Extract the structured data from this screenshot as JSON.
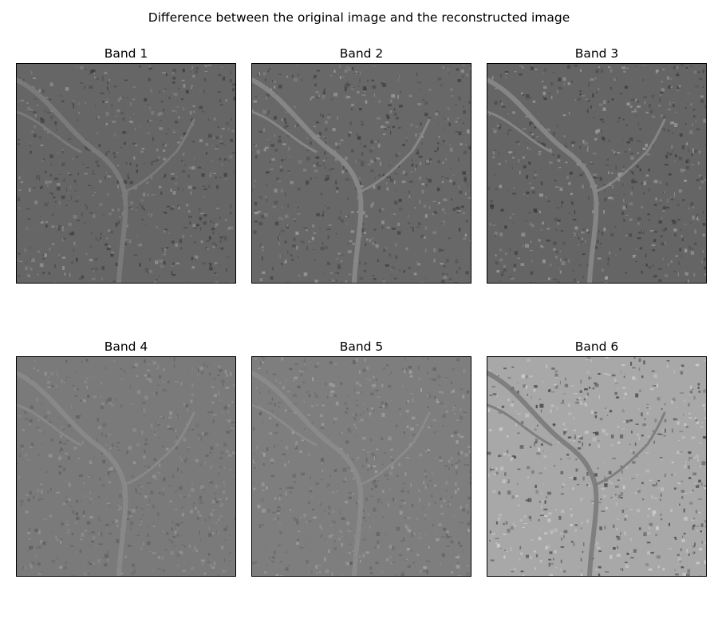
{
  "figure": {
    "title": "Difference between the original image and the reconstructed image"
  },
  "panels": [
    {
      "title": "Band 1",
      "base": "#666666",
      "river": "#7c7c7c",
      "speck": "#3a3a3a",
      "light": "#9a9a9a"
    },
    {
      "title": "Band 2",
      "base": "#686868",
      "river": "#8a8a8a",
      "speck": "#3c3c3c",
      "light": "#a4a4a4"
    },
    {
      "title": "Band 3",
      "base": "#656565",
      "river": "#888888",
      "speck": "#383838",
      "light": "#a8a8a8"
    },
    {
      "title": "Band 4",
      "base": "#7a7a7a",
      "river": "#8a8a8a",
      "speck": "#5c5c5c",
      "light": "#9a9a9a"
    },
    {
      "title": "Band 5",
      "base": "#7e7e7e",
      "river": "#8c8c8c",
      "speck": "#5e5e5e",
      "light": "#a8a8a8"
    },
    {
      "title": "Band 6",
      "base": "#a8a8a8",
      "river": "#7a7a7a",
      "speck": "#3a3a3a",
      "light": "#d6d6d6"
    }
  ]
}
